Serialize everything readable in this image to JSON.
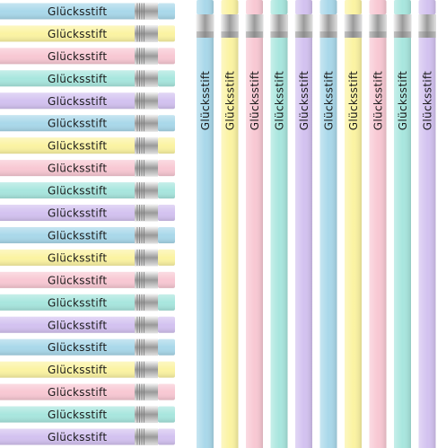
{
  "horizontal_pencils": [
    {
      "label": "Glücksstift",
      "color": "#a9d8ea"
    },
    {
      "label": "Glücksstift",
      "color": "#fbf3a2"
    },
    {
      "label": "Glücksstift",
      "color": "#f8c8d3"
    },
    {
      "label": "Glücksstift",
      "color": "#a8e6de"
    },
    {
      "label": "Glücksstift",
      "color": "#d3c2f0"
    },
    {
      "label": "Glücksstift",
      "color": "#a9d8ea"
    },
    {
      "label": "Glücksstift",
      "color": "#fbf3a2"
    },
    {
      "label": "Glücksstift",
      "color": "#f8c8d3"
    },
    {
      "label": "Glücksstift",
      "color": "#a8e6de"
    },
    {
      "label": "Glücksstift",
      "color": "#d3c2f0"
    },
    {
      "label": "Glücksstift",
      "color": "#a9d8ea"
    },
    {
      "label": "Glücksstift",
      "color": "#fbf3a2"
    },
    {
      "label": "Glücksstift",
      "color": "#f8c8d3"
    },
    {
      "label": "Glücksstift",
      "color": "#a8e6de"
    },
    {
      "label": "Glücksstift",
      "color": "#d3c2f0"
    },
    {
      "label": "Glücksstift",
      "color": "#a9d8ea"
    },
    {
      "label": "Glücksstift",
      "color": "#fbf3a2"
    },
    {
      "label": "Glücksstift",
      "color": "#f8c8d3"
    },
    {
      "label": "Glücksstift",
      "color": "#a8e6de"
    },
    {
      "label": "Glücksstift",
      "color": "#d3c2f0"
    }
  ],
  "vertical_pencils": [
    {
      "label": "Glücksstift",
      "color": "#a9d8ea"
    },
    {
      "label": "Glücksstift",
      "color": "#fbf3a2"
    },
    {
      "label": "Glücksstift",
      "color": "#f8c8d3"
    },
    {
      "label": "Glücksstift",
      "color": "#a8e6de"
    },
    {
      "label": "Glücksstift",
      "color": "#d3c2f0"
    },
    {
      "label": "Glücksstift",
      "color": "#a9d8ea"
    },
    {
      "label": "Glücksstift",
      "color": "#fbf3a2"
    },
    {
      "label": "Glücksstift",
      "color": "#f8c8d3"
    },
    {
      "label": "Glücksstift",
      "color": "#a8e6de"
    },
    {
      "label": "Glücksstift",
      "color": "#d3c2f0"
    }
  ]
}
